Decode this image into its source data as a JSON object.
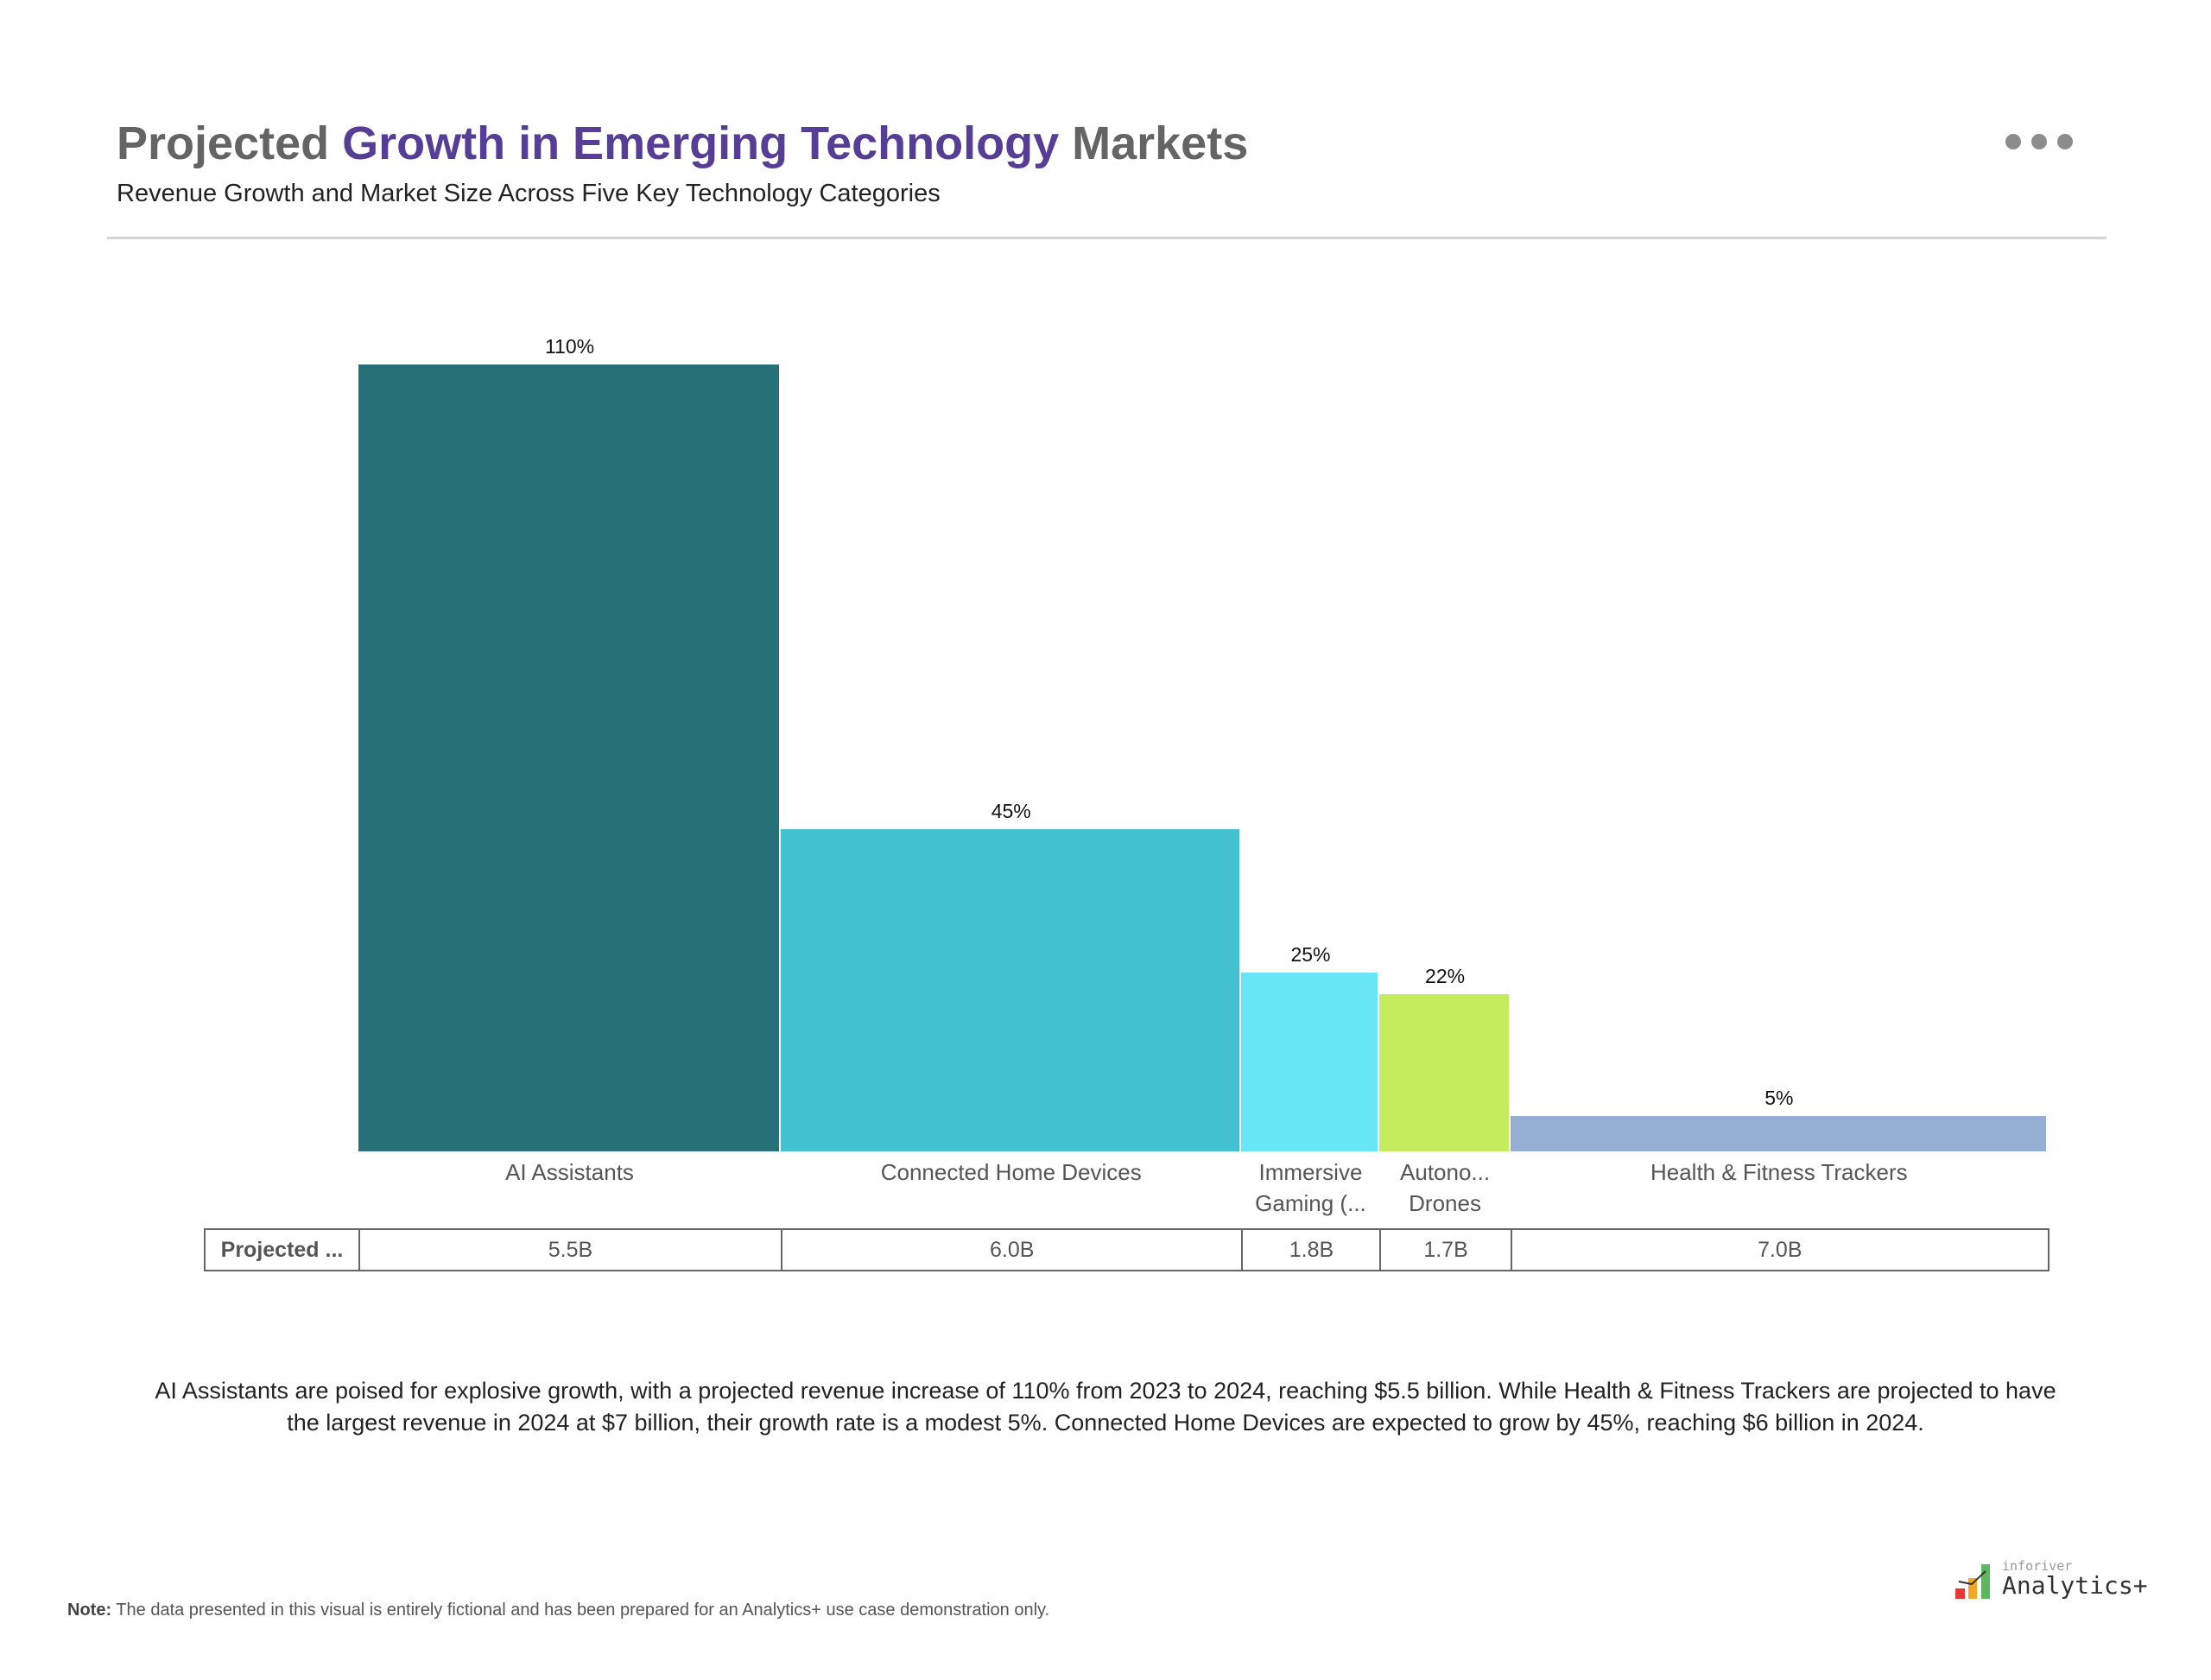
{
  "header": {
    "title_pre": "Projected ",
    "title_highlight": "Growth in Emerging Technology",
    "title_post": " Markets",
    "subtitle": "Revenue Growth and Market Size Across Five Key Technology Categories",
    "more_icon": "ellipsis-icon"
  },
  "colors": {
    "accent": "#563d96",
    "title_grey": "#646464"
  },
  "chart_data": {
    "type": "bar",
    "variant": "variable-width (marimekko) bars: height = growth %, width = projected revenue",
    "categories": [
      "AI Assistants",
      "Connected Home Devices",
      "Immersive Gaming (...",
      "Autono... Drones",
      "Health & Fitness Trackers"
    ],
    "category_labels": [
      [
        "AI Assistants"
      ],
      [
        "Connected Home Devices"
      ],
      [
        "Immersive",
        "Gaming (..."
      ],
      [
        "Autono...",
        "Drones"
      ],
      [
        "Health & Fitness Trackers"
      ]
    ],
    "values": [
      110,
      45,
      25,
      22,
      5
    ],
    "data_labels": [
      "110%",
      "45%",
      "25%",
      "22%",
      "5%"
    ],
    "widths": [
      5.5,
      6.0,
      1.8,
      1.7,
      7.0
    ],
    "colors": [
      "#267178",
      "#44c1d0",
      "#68e6f8",
      "#c5eb5e",
      "#94aed4"
    ],
    "grid": false,
    "table": {
      "row_header": "Projected ...",
      "cells": [
        "5.5B",
        "6.0B",
        "1.8B",
        "1.7B",
        "7.0B"
      ]
    }
  },
  "summary": "AI Assistants are poised for explosive growth, with a projected revenue increase of 110% from 2023 to 2024, reaching $5.5 billion. While Health & Fitness Trackers are projected to have the largest revenue in 2024 at $7 billion, their growth rate is a modest 5%. Connected Home Devices are expected to grow by 45%, reaching $6 billion in 2024.",
  "note": {
    "label": "Note:",
    "text": " The data presented in this visual is entirely fictional and has been prepared for an Analytics+ use case demonstration only."
  },
  "logo": {
    "line1": "inforiver",
    "line2": "Analytics+"
  }
}
